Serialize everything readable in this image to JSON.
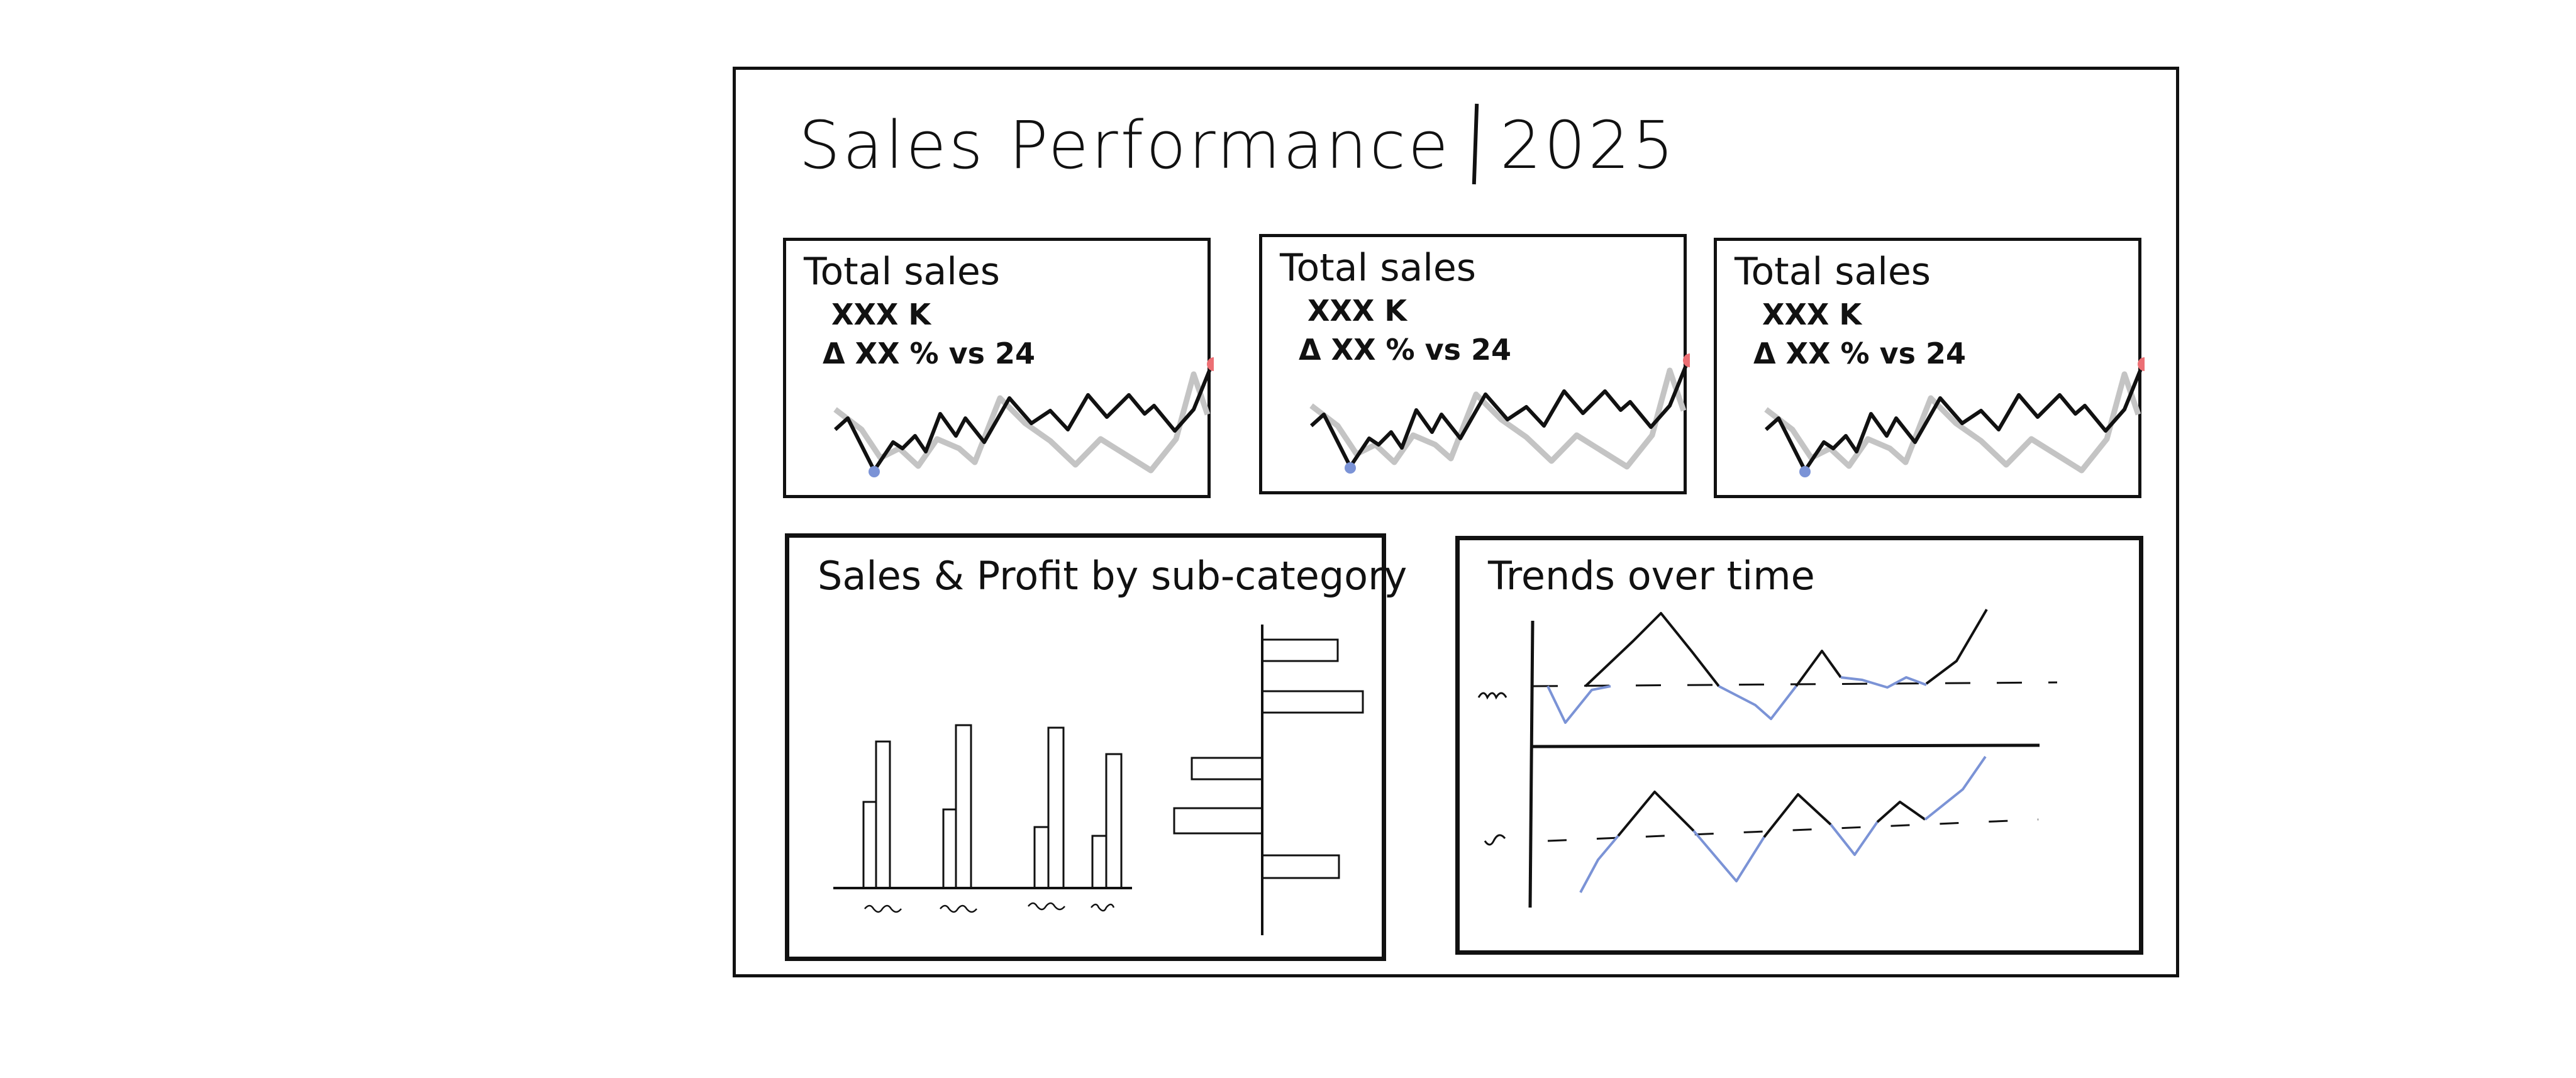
{
  "dashboard": {
    "title": "Sales Performance",
    "year": "2025"
  },
  "kpis": [
    {
      "label": "Total sales",
      "value": "XXX K",
      "delta": "Δ XX % vs 24"
    },
    {
      "label": "Total sales",
      "value": "XXX K",
      "delta": "Δ XX % vs 24"
    },
    {
      "label": "Total sales",
      "value": "XXX K",
      "delta": "Δ XX % vs 24"
    }
  ],
  "sparkline": {
    "current_color": "#111111",
    "previous_color": "#c4c4c4",
    "min_marker_color": "#7b93d6",
    "max_marker_color": "#ec6f74"
  },
  "bar_panel": {
    "title": "Sales & Profit by sub-category",
    "outline_color": "#111111"
  },
  "trend_panel": {
    "title": "Trends over time",
    "line_color": "#111111",
    "below_target_color": "#7b93d6"
  }
}
